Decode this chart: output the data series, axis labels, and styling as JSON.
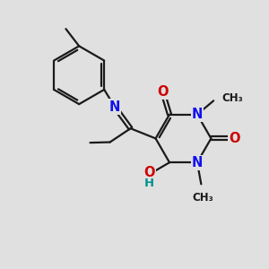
{
  "bg_color": "#e0e0e0",
  "bond_color": "#1a1a1a",
  "bond_width": 1.6,
  "atom_colors": {
    "N": "#1010ee",
    "O": "#cc0000",
    "C": "#1a1a1a",
    "H": "#009090"
  },
  "font_size_atom": 10.5,
  "font_size_me": 8.5
}
